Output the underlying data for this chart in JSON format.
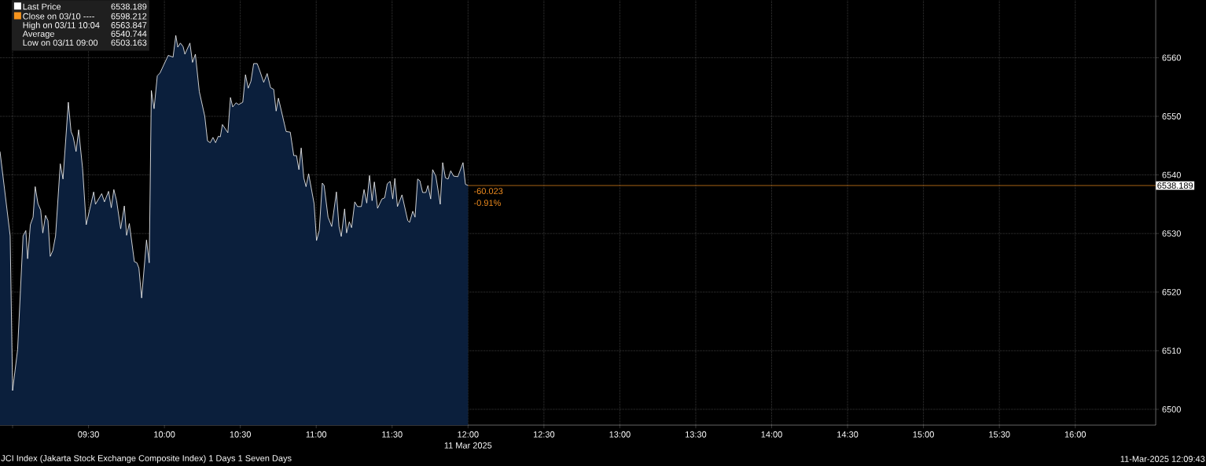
{
  "chart_data": {
    "type": "area",
    "xlabel": "11 Mar 2025",
    "x": [
      8.917,
      8.984,
      9.0,
      9.033,
      9.069,
      9.087,
      9.099,
      9.117,
      9.135,
      9.149,
      9.167,
      9.185,
      9.199,
      9.217,
      9.233,
      9.248,
      9.265,
      9.283,
      9.314,
      9.332,
      9.367,
      9.385,
      9.399,
      9.418,
      9.435,
      9.461,
      9.485,
      9.534,
      9.546,
      9.587,
      9.605,
      9.632,
      9.65,
      9.667,
      9.685,
      9.712,
      9.736,
      9.751,
      9.769,
      9.802,
      9.819,
      9.832,
      9.85,
      9.882,
      9.9,
      9.914,
      9.932,
      9.953,
      9.971,
      10.025,
      10.057,
      10.075,
      10.088,
      10.105,
      10.123,
      10.135,
      10.168,
      10.185,
      10.204,
      10.23,
      10.266,
      10.284,
      10.302,
      10.32,
      10.337,
      10.355,
      10.368,
      10.382,
      10.418,
      10.435,
      10.45,
      10.472,
      10.489,
      10.516,
      10.534,
      10.552,
      10.57,
      10.588,
      10.611,
      10.628,
      10.654,
      10.677,
      10.699,
      10.72,
      10.736,
      10.751,
      10.802,
      10.829,
      10.852,
      10.87,
      10.886,
      10.901,
      10.918,
      10.933,
      10.95,
      10.986,
      11.002,
      11.02,
      11.04,
      11.052,
      11.078,
      11.102,
      11.133,
      11.15,
      11.165,
      11.187,
      11.2,
      11.218,
      11.233,
      11.254,
      11.272,
      11.297,
      11.315,
      11.333,
      11.351,
      11.368,
      11.383,
      11.404,
      11.433,
      11.451,
      11.468,
      11.487,
      11.504,
      11.518,
      11.535,
      11.565,
      11.603,
      11.615,
      11.636,
      11.651,
      11.668,
      11.683,
      11.701,
      11.722,
      11.736,
      11.754,
      11.767,
      11.788,
      11.817,
      11.833,
      11.851,
      11.869,
      11.886,
      11.905,
      11.933,
      11.967,
      11.983,
      12.0
    ],
    "series": [
      {
        "color": "#0b1f3c",
        "values": [
          6544.0,
          6529.6,
          6503.2,
          6510.2,
          6529.6,
          6530.5,
          6525.7,
          6531.5,
          6532.8,
          6538.0,
          6535.1,
          6534.0,
          6530.1,
          6533.1,
          6532.2,
          6526.1,
          6527.1,
          6529.6,
          6541.9,
          6539.3,
          6552.4,
          6547.4,
          6546.5,
          6544.0,
          6547.7,
          6541.1,
          6531.5,
          6537.1,
          6535.0,
          6536.8,
          6535.4,
          6537.2,
          6534.4,
          6537.5,
          6535.6,
          6530.8,
          6534.7,
          6529.7,
          6531.7,
          6525.2,
          6525.0,
          6524.1,
          6519.0,
          6528.9,
          6525.0,
          6554.4,
          6551.3,
          6556.9,
          6557.4,
          6560.4,
          6560.1,
          6563.8,
          6561.8,
          6562.5,
          6561.9,
          6560.6,
          6562.5,
          6559.2,
          6560.6,
          6554.2,
          6550.0,
          6545.8,
          6545.5,
          6546.4,
          6545.5,
          6546.6,
          6546.5,
          6548.6,
          6547.2,
          6553.2,
          6551.6,
          6552.3,
          6552.0,
          6552.4,
          6557.1,
          6554.8,
          6556.0,
          6559.0,
          6559.0,
          6557.8,
          6555.8,
          6557.3,
          6554.9,
          6554.6,
          6550.9,
          6553.1,
          6547.4,
          6547.3,
          6543.3,
          6543.3,
          6540.9,
          6544.6,
          6539.5,
          6538.0,
          6540.2,
          6535.1,
          6528.8,
          6530.5,
          6538.6,
          6538.2,
          6532.8,
          6531.2,
          6537.1,
          6531.2,
          6529.5,
          6534.2,
          6530.1,
          6532.0,
          6531.0,
          6535.4,
          6534.6,
          6534.6,
          6537.5,
          6535.2,
          6539.9,
          6535.6,
          6538.8,
          6534.3,
          6535.9,
          6536.1,
          6538.5,
          6538.9,
          6535.9,
          6539.4,
          6534.6,
          6536.6,
          6532.2,
          6531.9,
          6533.8,
          6532.8,
          6539.3,
          6539.0,
          6537.0,
          6537.0,
          6538.2,
          6535.9,
          6540.9,
          6539.8,
          6535.0,
          6542.1,
          6539.5,
          6539.3,
          6540.7,
          6539.8,
          6539.7,
          6542.1,
          6538.4,
          6538.2
        ]
      }
    ],
    "xlim": [
      8.917,
      16.53
    ],
    "ylim": [
      6497.3,
      6569.85
    ],
    "xticks": [
      {
        "value": 9,
        "label": null
      },
      {
        "value": 9.5,
        "label": "09:30"
      },
      {
        "value": 10,
        "label": "10:00"
      },
      {
        "value": 10.5,
        "label": "10:30"
      },
      {
        "value": 11,
        "label": "11:00"
      },
      {
        "value": 11.5,
        "label": "11:30"
      },
      {
        "value": 12,
        "label": "12:00"
      },
      {
        "value": 12.5,
        "label": "12:30"
      },
      {
        "value": 13,
        "label": "13:00"
      },
      {
        "value": 13.5,
        "label": "13:30"
      },
      {
        "value": 14,
        "label": "14:00"
      },
      {
        "value": 14.5,
        "label": "14:30"
      },
      {
        "value": 15,
        "label": "15:00"
      },
      {
        "value": 15.5,
        "label": "15:30"
      },
      {
        "value": 16,
        "label": "16:00"
      }
    ],
    "yticks": [
      6500,
      6510,
      6520,
      6530,
      6540,
      6550,
      6560
    ],
    "grid": true,
    "ref_lines": [
      {
        "axis": "y",
        "value": 6538.189,
        "label": "6538.189",
        "color": "#f08c1e"
      }
    ],
    "annotations": [
      "Last Price",
      "6538.189",
      "Close on 03/10 ----",
      "6598.212",
      "High on 03/11 10:04",
      "6563.847",
      "Average",
      "6540.744",
      "Low on 03/11 09:00",
      "6503.163",
      {
        "text": "-60.023",
        "x": 12.0,
        "y": 6538.189
      },
      {
        "text": "-0.91%",
        "x": 12.0,
        "y": 6538.189
      },
      "JCI Index (Jakarta Stock Exchange Composite Index) 1 Days 1 Seven Days",
      "11-Mar-2025 12:09:43"
    ]
  }
}
